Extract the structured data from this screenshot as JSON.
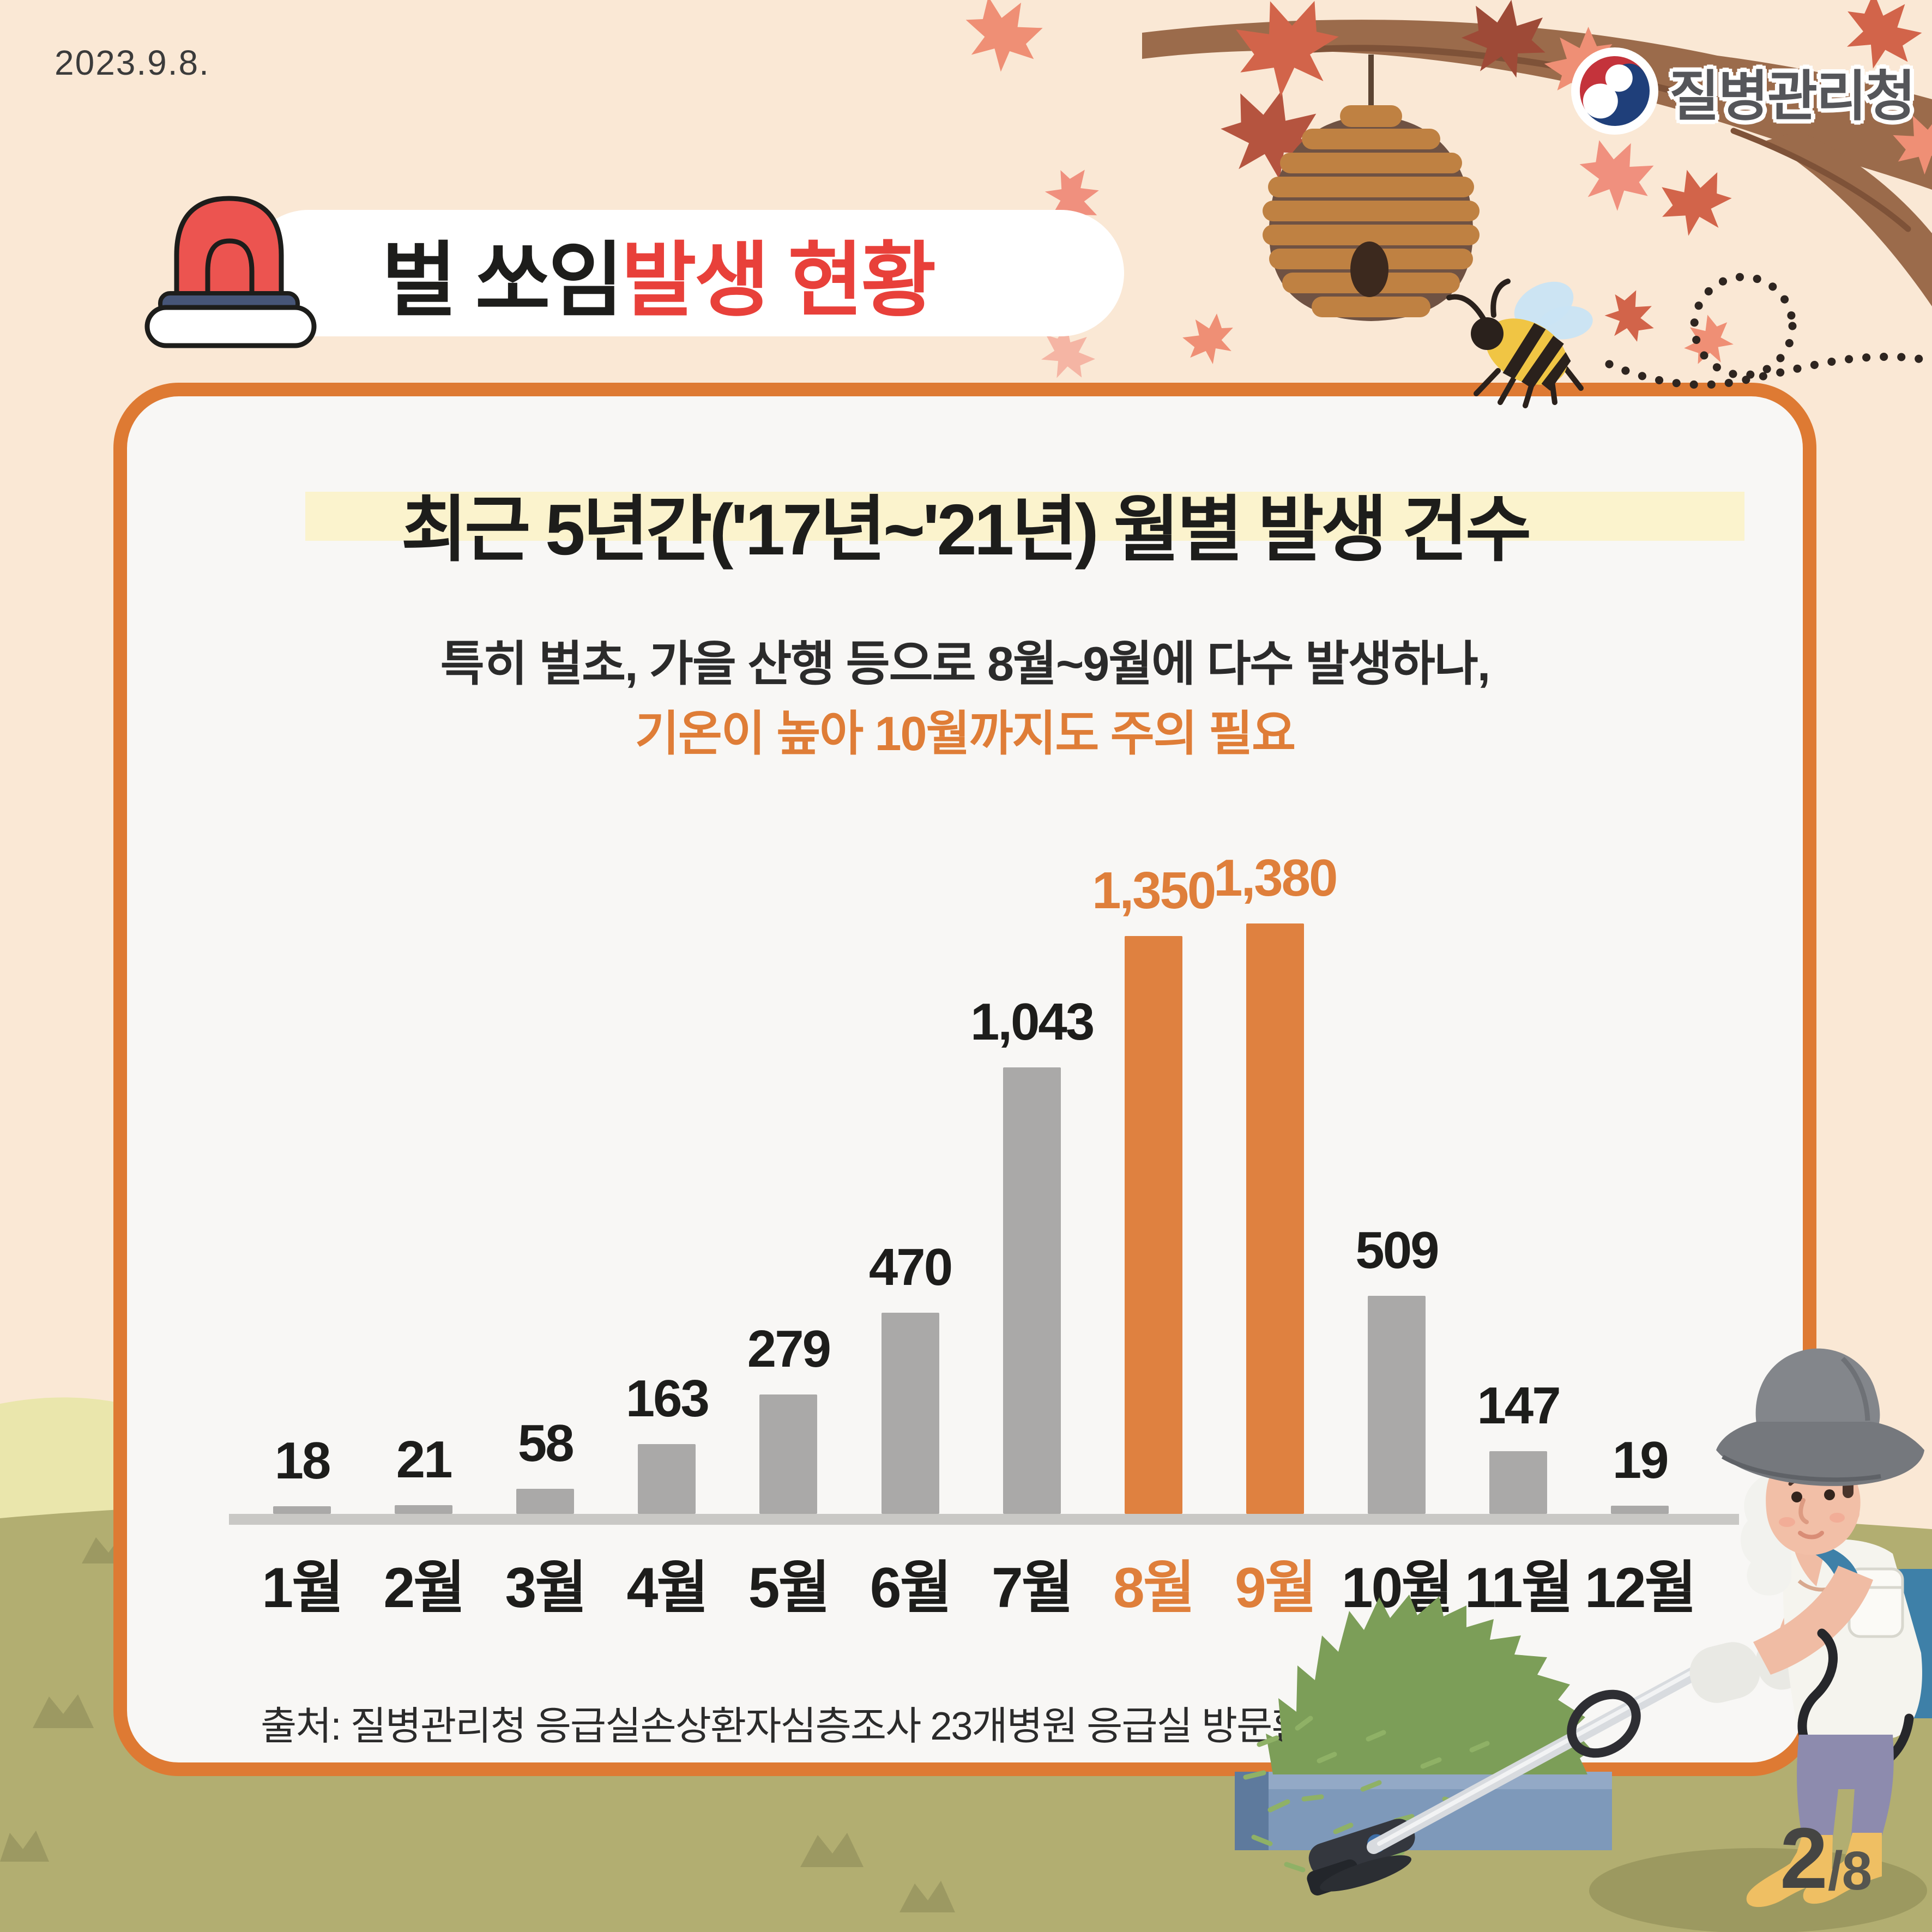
{
  "page": {
    "date": "2023.9.8."
  },
  "logo": {
    "text": "질병관리청"
  },
  "header": {
    "title_black": "벌 쏘임 ",
    "title_red": "발생 현황"
  },
  "card": {
    "title": "최근 5년간('17년~'21년) 월별 발생 건수",
    "subtitle_line1": "특히  벌초, 가을 산행 등으로 8월~9월에 다수 발생하나,",
    "subtitle_line2": "기온이 높아 10월까지도 주의 필요",
    "source": "출처: 질병관리청 응급실손상환자심층조사 23개병원 응급실 방문환자"
  },
  "chart_data": {
    "type": "bar",
    "title": "최근 5년간('17년~'21년) 월별 발생 건수",
    "categories": [
      "1월",
      "2월",
      "3월",
      "4월",
      "5월",
      "6월",
      "7월",
      "8월",
      "9월",
      "10월",
      "11월",
      "12월"
    ],
    "values": [
      18,
      21,
      58,
      163,
      279,
      470,
      1043,
      1350,
      1380,
      509,
      147,
      19
    ],
    "value_labels": [
      "18",
      "21",
      "58",
      "163",
      "279",
      "470",
      "1,043",
      "1,350",
      "1,380",
      "509",
      "147",
      "19"
    ],
    "highlight_categories": [
      "8월",
      "9월"
    ],
    "bar_color": "#aaa9a8",
    "highlight_color": "#df8140",
    "label_color": "#1d1d1b",
    "highlight_label_color": "#df7f3b",
    "baseline_color": "#c9c8c5",
    "ylim": [
      0,
      1430
    ],
    "grid": false,
    "legend": null
  },
  "pagination": {
    "current": "2",
    "total": "/8"
  },
  "colors": {
    "background": "#fae8d5",
    "card_bg": "#f8f7f5",
    "card_border": "#de7a33",
    "title_highlight": "#fbf3cd",
    "title_red": "#e8403a",
    "subtitle_orange": "#df7d37",
    "hill_pale": "#eae6ac",
    "hill_olive": "#b2ae71"
  },
  "icons": [
    "siren-icon",
    "taegeuk-logo-icon",
    "beehive-icon",
    "bee-icon",
    "maple-leaf-icon",
    "branch-decoration",
    "worker-illustration",
    "bush-illustration"
  ]
}
